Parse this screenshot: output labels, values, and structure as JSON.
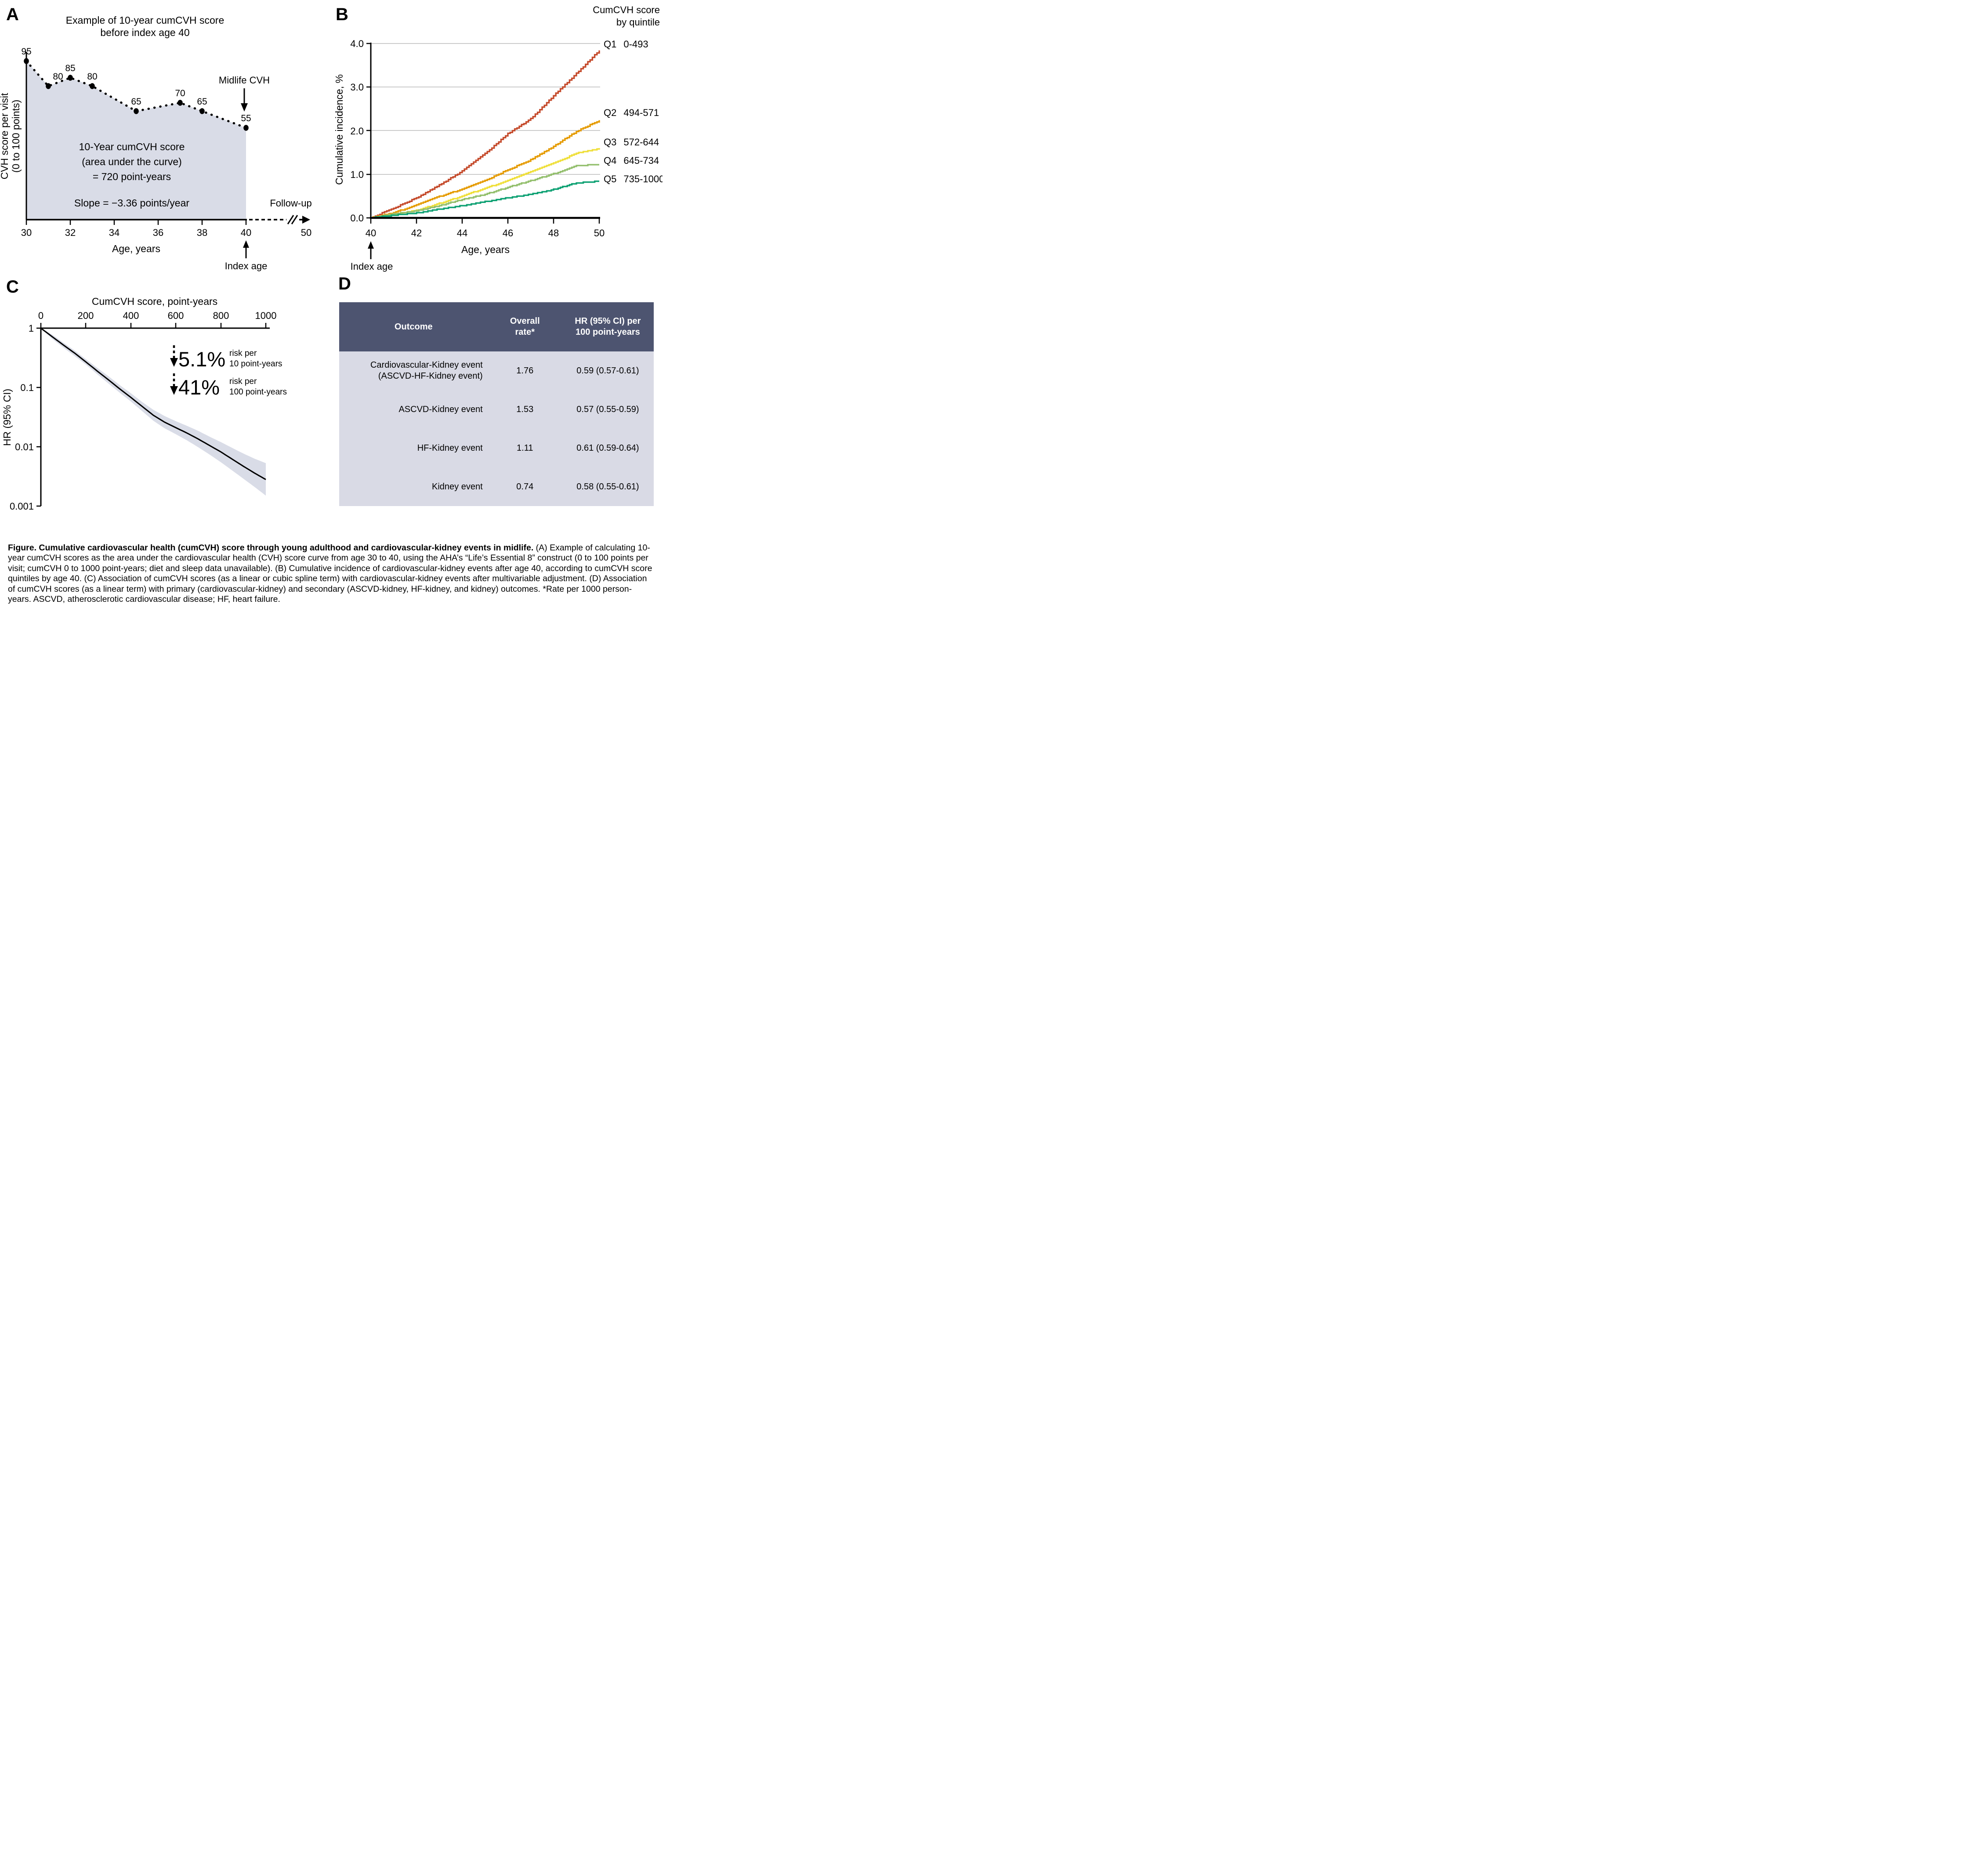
{
  "figure": {
    "panel_a": {
      "label": "A",
      "title1": "Example of 10-year cumCVH score",
      "title2": "before index age 40",
      "ylabel1": "CVH score per visit",
      "ylabel2": "(0 to 100 points)",
      "xlabel": "Age, years",
      "area_line1": "10-Year cumCVH score",
      "area_line2": "(area under the curve)",
      "area_line3": "= 720 point-years",
      "slope": "Slope = −3.36 points/year",
      "midlife": "Midlife CVH",
      "followup": "Follow-up",
      "index_age": "Index age",
      "x_ticks": [
        "30",
        "32",
        "34",
        "36",
        "38",
        "40"
      ],
      "x_end": "50"
    },
    "panel_b": {
      "label": "B",
      "legend_title1": "CumCVH score",
      "legend_title2": "by quintile",
      "ylabel": "Cumulative incidence, %",
      "xlabel": "Age, years",
      "index_age": "Index age",
      "y_ticks": [
        "0.0",
        "1.0",
        "2.0",
        "3.0",
        "4.0"
      ],
      "x_ticks": [
        "40",
        "42",
        "44",
        "46",
        "48",
        "50"
      ]
    },
    "panel_c": {
      "label": "C",
      "top_axis_title": "CumCVH score, point-years",
      "x_ticks": [
        "0",
        "200",
        "400",
        "600",
        "800",
        "1000"
      ],
      "y_ticks": [
        "1",
        "0.1",
        "0.01",
        "0.001"
      ],
      "ylabel": "HR (95% CI)",
      "ann1_pct": "5.1%",
      "ann1_line1": "risk per",
      "ann1_line2": "10 point-years",
      "ann2_pct": "41%",
      "ann2_line1": "risk per",
      "ann2_line2": "100 point-years"
    },
    "panel_d": {
      "label": "D",
      "col1": "Outcome",
      "col2_line1": "Overall",
      "col2_line2": "rate*",
      "col3_line1": "HR (95% CI) per",
      "col3_line2": "100 point-years",
      "rows": [
        {
          "outcome1": "Cardiovascular-Kidney event",
          "outcome2": "(ASCVD-HF-Kidney event)",
          "rate": "1.76",
          "hr": "0.59 (0.57-0.61)"
        },
        {
          "outcome1": "ASCVD-Kidney event",
          "outcome2": "",
          "rate": "1.53",
          "hr": "0.57 (0.55-0.59)"
        },
        {
          "outcome1": "HF-Kidney event",
          "outcome2": "",
          "rate": "1.11",
          "hr": "0.61 (0.59-0.64)"
        },
        {
          "outcome1": "Kidney event",
          "outcome2": "",
          "rate": "0.74",
          "hr": "0.58 (0.55-0.61)"
        }
      ]
    },
    "caption": {
      "bold": "Figure. Cumulative cardiovascular health (cumCVH) score through young adulthood and cardiovascular-kidney events in midlife.",
      "rest": " (A) Example of calculating 10-year cumCVH scores as the area under the cardiovascular health (CVH) score curve from age 30 to 40, using the AHA’s “Life’s Essential 8” construct (0 to 100 points per visit; cumCVH 0 to 1000 point-years; diet and sleep data unavailable). (B) Cumulative incidence of cardiovascular-kidney events after age 40, according to cumCVH score quintiles by age 40. (C) Association of cumCVH scores (as a linear or cubic spline term) with cardiovascular-kidney events after multivariable adjustment. (D) Association of cumCVH scores (as a linear term) with primary (cardiovascular-kidney) and secondary (ASCVD-kidney, HF-kidney, and kidney) outcomes. *Rate per 1000 person-years. ASCVD, atherosclerotic cardiovascular disease; HF, heart failure."
    },
    "colors": {
      "area_fill": "#d9dce7",
      "ci_fill": "#d9dce7",
      "grid": "#cbcbcb",
      "axis": "#000000",
      "table_header_bg": "#4d5470",
      "table_body_bg": "#d9dae5"
    }
  },
  "chart_data": [
    {
      "id": "cvh_example_area",
      "type": "area",
      "title": "Example of 10-year cumCVH score before index age 40",
      "xlabel": "Age, years",
      "ylabel": "CVH score per visit (0 to 100 points)",
      "xlim": [
        30,
        50
      ],
      "ylim": [
        0,
        100
      ],
      "x": [
        30,
        31,
        32,
        33,
        35,
        37,
        38,
        40
      ],
      "y": [
        95,
        80,
        85,
        80,
        65,
        70,
        65,
        55
      ],
      "annotations": [
        "10-Year cumCVH score (area under the curve) = 720 point-years",
        "Slope = −3.36 points/year",
        "Midlife CVH = 55 at index age 40",
        "Follow-up from age 40 to 50"
      ]
    },
    {
      "id": "cumulative_incidence_by_quintile",
      "type": "line",
      "xlabel": "Age, years",
      "ylabel": "Cumulative incidence, %",
      "xlim": [
        40,
        50
      ],
      "ylim": [
        0,
        4
      ],
      "grid": "horizontal",
      "legend_title": "CumCVH score by quintile",
      "legend_position": "right",
      "x": [
        40,
        41,
        42,
        43,
        44,
        45,
        46,
        47,
        48,
        49,
        50
      ],
      "series": [
        {
          "name": "Q1",
          "range": "0-493",
          "color": "#c54b2c",
          "values": [
            0,
            0.22,
            0.46,
            0.75,
            1.07,
            1.47,
            1.93,
            2.27,
            2.8,
            3.31,
            3.84
          ]
        },
        {
          "name": "Q2",
          "range": "494-571",
          "color": "#e59b00",
          "values": [
            0,
            0.12,
            0.29,
            0.49,
            0.66,
            0.85,
            1.1,
            1.33,
            1.64,
            1.98,
            2.23
          ]
        },
        {
          "name": "Q3",
          "range": "572-644",
          "color": "#efdf3a",
          "values": [
            0,
            0.08,
            0.17,
            0.33,
            0.5,
            0.68,
            0.85,
            1.06,
            1.25,
            1.48,
            1.59
          ]
        },
        {
          "name": "Q4",
          "range": "645-734",
          "color": "#93bf6d",
          "values": [
            0,
            0.09,
            0.16,
            0.28,
            0.42,
            0.54,
            0.7,
            0.85,
            1.01,
            1.2,
            1.22
          ]
        },
        {
          "name": "Q5",
          "range": "735-1000",
          "color": "#0ea173",
          "values": [
            0,
            0.06,
            0.11,
            0.2,
            0.28,
            0.37,
            0.46,
            0.54,
            0.65,
            0.8,
            0.84
          ]
        }
      ]
    },
    {
      "id": "hr_spline",
      "type": "line",
      "xlabel": "CumCVH score, point-years",
      "ylabel": "HR (95% CI)",
      "xlim": [
        0,
        1000
      ],
      "yscale": "log",
      "ylim": [
        0.001,
        1
      ],
      "x": [
        0,
        50,
        100,
        150,
        200,
        250,
        300,
        350,
        400,
        450,
        500,
        550,
        600,
        650,
        700,
        750,
        800,
        850,
        900,
        950,
        1000
      ],
      "hr": [
        1,
        0.72,
        0.52,
        0.38,
        0.27,
        0.19,
        0.135,
        0.095,
        0.068,
        0.048,
        0.034,
        0.026,
        0.021,
        0.017,
        0.0135,
        0.0105,
        0.0082,
        0.0062,
        0.0047,
        0.0036,
        0.0028
      ],
      "ci_upper": [
        1,
        0.78,
        0.57,
        0.42,
        0.3,
        0.215,
        0.155,
        0.11,
        0.08,
        0.057,
        0.042,
        0.033,
        0.027,
        0.0225,
        0.0185,
        0.0148,
        0.012,
        0.0096,
        0.0077,
        0.0063,
        0.0053
      ],
      "ci_lower": [
        1,
        0.66,
        0.47,
        0.34,
        0.243,
        0.168,
        0.117,
        0.082,
        0.058,
        0.04,
        0.0275,
        0.0205,
        0.0163,
        0.0128,
        0.0098,
        0.0074,
        0.0055,
        0.004,
        0.0029,
        0.0021,
        0.0015
      ],
      "annotations": [
        "↓5.1% risk per 10 point-years",
        "↓41% risk per 100 point-years"
      ]
    },
    {
      "id": "outcomes_table",
      "type": "table",
      "columns": [
        "Outcome",
        "Overall rate*",
        "HR (95% CI) per 100 point-years"
      ],
      "rows": [
        [
          "Cardiovascular-Kidney event (ASCVD-HF-Kidney event)",
          "1.76",
          "0.59 (0.57-0.61)"
        ],
        [
          "ASCVD-Kidney event",
          "1.53",
          "0.57 (0.55-0.59)"
        ],
        [
          "HF-Kidney event",
          "1.11",
          "0.61 (0.59-0.64)"
        ],
        [
          "Kidney event",
          "0.74",
          "0.58 (0.55-0.61)"
        ]
      ]
    }
  ]
}
